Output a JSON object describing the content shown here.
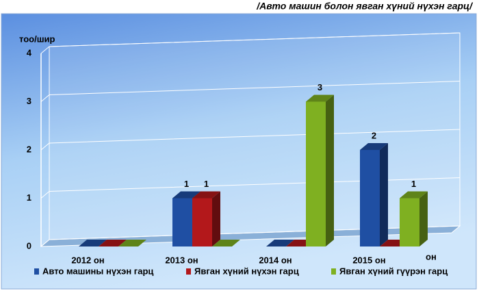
{
  "chart_data": {
    "type": "bar3d",
    "title": "/Авто машин болон явган хүний нүхэн гарц/",
    "y_label": "тоо/шир",
    "x_label": "он",
    "categories": [
      "2012 он",
      "2013 он",
      "2014 он",
      "2015 он"
    ],
    "series": [
      {
        "name": "Авто машины нүхэн гарц",
        "color": "#1f4fa3",
        "values": [
          0,
          1,
          0,
          2
        ]
      },
      {
        "name": "Явган хүний нүхэн гарц",
        "color": "#b3181b",
        "values": [
          0,
          1,
          0,
          0
        ]
      },
      {
        "name": "Явган хүний гүүрэн гарц",
        "color": "#7fb021",
        "values": [
          0,
          0,
          3,
          1
        ]
      }
    ],
    "ylim": [
      0,
      4
    ],
    "yticks": [
      0,
      1,
      2,
      3,
      4
    ],
    "grid": true
  }
}
